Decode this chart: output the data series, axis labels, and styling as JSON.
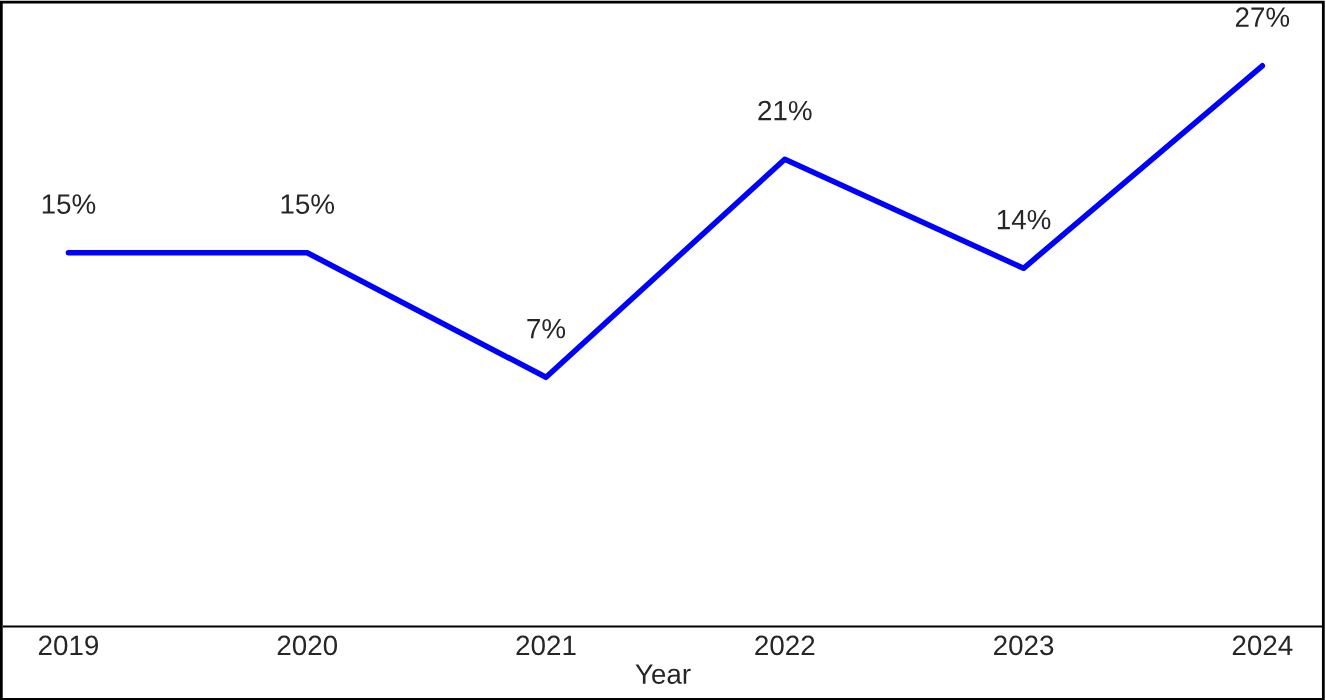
{
  "chart_data": {
    "type": "line",
    "xlabel": "Year",
    "categories": [
      "2019",
      "2020",
      "2021",
      "2022",
      "2023",
      "2024"
    ],
    "series": [
      {
        "color": "#0000ff",
        "values": [
          15,
          15,
          7,
          21,
          14,
          27
        ],
        "value_labels": [
          "15%",
          "15%",
          "7%",
          "21%",
          "14%",
          "27%"
        ]
      }
    ],
    "marker": "none",
    "line_style": "solid"
  }
}
